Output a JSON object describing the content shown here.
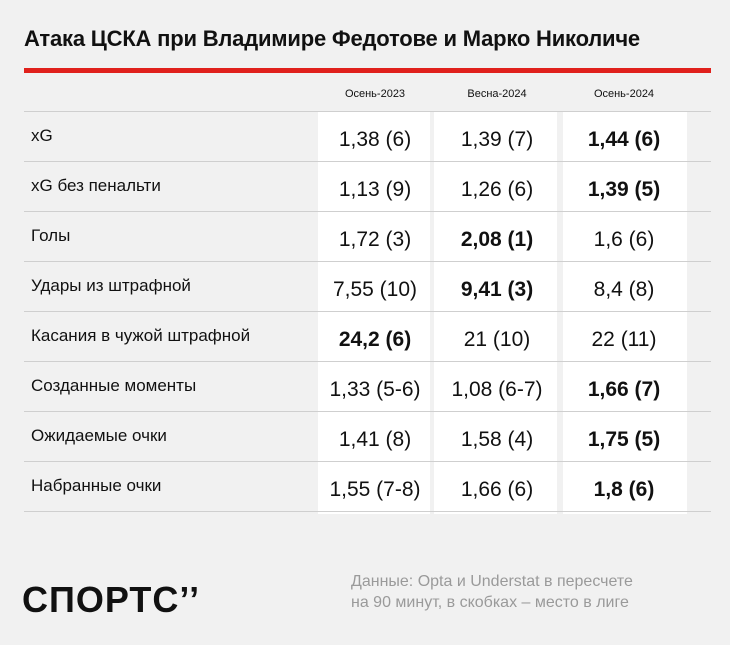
{
  "title": "Атака ЦСКА при Владимире Федотове и Марко Николиче",
  "note_line1": "Данные: Opta и Understat в пересчете",
  "note_line2": "на 90 минут, в скобках – место в лиге",
  "logo_text": "СПОРТС’’",
  "colors": {
    "accent": "#e0211c",
    "background": "#f1f1f1",
    "column_bg": "#ffffff",
    "note": "#9a9a9a"
  },
  "chart_data": {
    "type": "table",
    "columns": [
      "Осень-2023",
      "Весна-2024",
      "Осень-2024"
    ],
    "rows": [
      {
        "label": "xG",
        "cells": [
          {
            "text": "1,38 (6)",
            "value": 1.38,
            "rank": "6",
            "best": false
          },
          {
            "text": "1,39 (7)",
            "value": 1.39,
            "rank": "7",
            "best": false
          },
          {
            "text": "1,44 (6)",
            "value": 1.44,
            "rank": "6",
            "best": true
          }
        ]
      },
      {
        "label": "xG без пенальти",
        "cells": [
          {
            "text": "1,13 (9)",
            "value": 1.13,
            "rank": "9",
            "best": false
          },
          {
            "text": "1,26 (6)",
            "value": 1.26,
            "rank": "6",
            "best": false
          },
          {
            "text": "1,39 (5)",
            "value": 1.39,
            "rank": "5",
            "best": true
          }
        ]
      },
      {
        "label": "Голы",
        "cells": [
          {
            "text": "1,72 (3)",
            "value": 1.72,
            "rank": "3",
            "best": false
          },
          {
            "text": "2,08 (1)",
            "value": 2.08,
            "rank": "1",
            "best": true
          },
          {
            "text": "1,6 (6)",
            "value": 1.6,
            "rank": "6",
            "best": false
          }
        ]
      },
      {
        "label": "Удары из штрафной",
        "cells": [
          {
            "text": "7,55 (10)",
            "value": 7.55,
            "rank": "10",
            "best": false
          },
          {
            "text": "9,41 (3)",
            "value": 9.41,
            "rank": "3",
            "best": true
          },
          {
            "text": "8,4 (8)",
            "value": 8.4,
            "rank": "8",
            "best": false
          }
        ]
      },
      {
        "label": "Касания в чужой штрафной",
        "cells": [
          {
            "text": "24,2 (6)",
            "value": 24.2,
            "rank": "6",
            "best": true
          },
          {
            "text": "21 (10)",
            "value": 21,
            "rank": "10",
            "best": false
          },
          {
            "text": "22 (11)",
            "value": 22,
            "rank": "11",
            "best": false
          }
        ]
      },
      {
        "label": "Созданные моменты",
        "cells": [
          {
            "text": "1,33 (5-6)",
            "value": 1.33,
            "rank": "5-6",
            "best": false
          },
          {
            "text": "1,08 (6-7)",
            "value": 1.08,
            "rank": "6-7",
            "best": false
          },
          {
            "text": "1,66 (7)",
            "value": 1.66,
            "rank": "7",
            "best": true
          }
        ]
      },
      {
        "label": "Ожидаемые очки",
        "cells": [
          {
            "text": "1,41 (8)",
            "value": 1.41,
            "rank": "8",
            "best": false
          },
          {
            "text": "1,58 (4)",
            "value": 1.58,
            "rank": "4",
            "best": false
          },
          {
            "text": "1,75 (5)",
            "value": 1.75,
            "rank": "5",
            "best": true
          }
        ]
      },
      {
        "label": "Набранные очки",
        "cells": [
          {
            "text": "1,55 (7-8)",
            "value": 1.55,
            "rank": "7-8",
            "best": false
          },
          {
            "text": "1,66 (6)",
            "value": 1.66,
            "rank": "6",
            "best": false
          },
          {
            "text": "1,8 (6)",
            "value": 1.8,
            "rank": "6",
            "best": true
          }
        ]
      }
    ]
  }
}
